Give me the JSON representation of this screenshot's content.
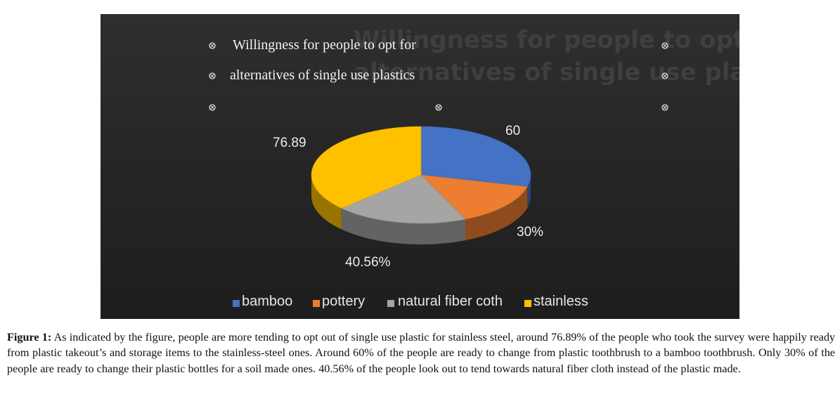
{
  "chart_data": {
    "type": "pie",
    "title_lines": [
      "Willingness for people to opt for",
      "alternatives of single use  plastics"
    ],
    "slices": [
      {
        "name": "bamboo",
        "value": 60,
        "label": "60",
        "color": "#4472c4"
      },
      {
        "name": "pottery",
        "value": 30,
        "label": "30%",
        "color": "#ed7d31"
      },
      {
        "name": "natural fiber coth",
        "value": 40.56,
        "label": "40.56%",
        "color": "#a5a5a5"
      },
      {
        "name": "stainless",
        "value": 76.89,
        "label": "76.89",
        "color": "#ffc000"
      }
    ],
    "legend_position": "bottom"
  },
  "caption": {
    "label": "Figure 1:",
    "text": " As indicated by the figure, people are more tending to opt out of single use plastic for stainless steel, around 76.89% of the people who took the survey were happily ready from plastic takeout’s and storage items to the stainless-steel ones. Around 60% of the people are ready to change from plastic toothbrush to a bamboo toothbrush. Only 30% of the people are ready to change their plastic bottles for a soil made ones. 40.56% of the people look out to tend towards natural fiber cloth instead of the plastic made."
  }
}
